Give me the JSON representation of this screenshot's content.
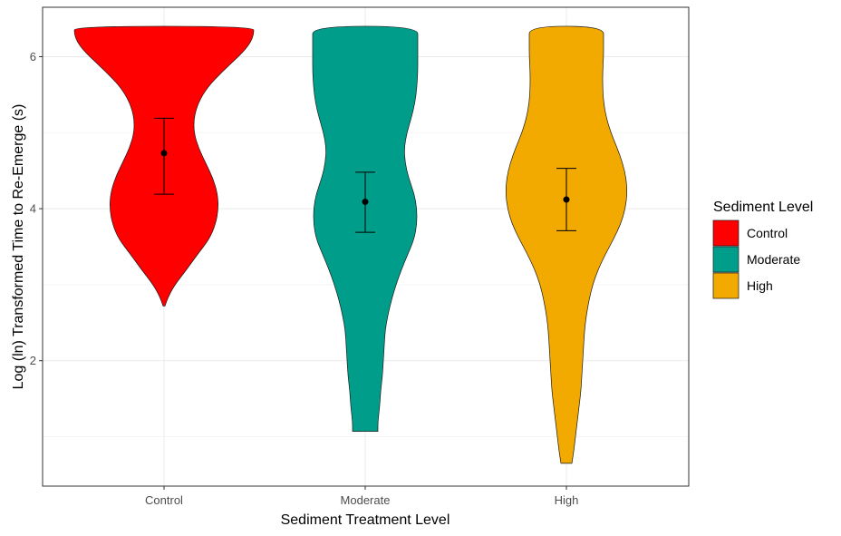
{
  "chart_data": {
    "type": "violin",
    "xlabel": "Sediment Treatment Level",
    "ylabel": "Log (ln) Transformed Time to Re-Emerge (s)",
    "categories": [
      "Control",
      "Moderate",
      "High"
    ],
    "ylim": [
      0.35,
      6.65
    ],
    "yticks": [
      2,
      4,
      6
    ],
    "grid": true,
    "legend": {
      "title": "Sediment Level",
      "position": "right",
      "entries": [
        "Control",
        "Moderate",
        "High"
      ]
    },
    "colors": [
      "#FF0000",
      "#009E8A",
      "#F2A900"
    ],
    "series": [
      {
        "name": "Control",
        "mean": 4.73,
        "ci_low": 4.19,
        "ci_high": 5.19,
        "min": 2.72,
        "max": 6.4,
        "density": [
          [
            2.72,
            0.01
          ],
          [
            2.85,
            0.05
          ],
          [
            3.0,
            0.12
          ],
          [
            3.2,
            0.25
          ],
          [
            3.4,
            0.37
          ],
          [
            3.6,
            0.5
          ],
          [
            3.8,
            0.57
          ],
          [
            4.0,
            0.6
          ],
          [
            4.2,
            0.59
          ],
          [
            4.4,
            0.54
          ],
          [
            4.6,
            0.46
          ],
          [
            4.8,
            0.38
          ],
          [
            5.0,
            0.33
          ],
          [
            5.2,
            0.33
          ],
          [
            5.4,
            0.38
          ],
          [
            5.6,
            0.48
          ],
          [
            5.8,
            0.64
          ],
          [
            6.0,
            0.82
          ],
          [
            6.1,
            0.9
          ],
          [
            6.2,
            0.96
          ],
          [
            6.3,
            0.99
          ],
          [
            6.4,
            0.99
          ]
        ]
      },
      {
        "name": "Moderate",
        "mean": 4.09,
        "ci_low": 3.69,
        "ci_high": 4.48,
        "min": 1.07,
        "max": 6.4,
        "density": [
          [
            1.07,
            0.14
          ],
          [
            1.2,
            0.14
          ],
          [
            1.4,
            0.16
          ],
          [
            1.6,
            0.17
          ],
          [
            1.8,
            0.19
          ],
          [
            2.0,
            0.2
          ],
          [
            2.2,
            0.21
          ],
          [
            2.4,
            0.22
          ],
          [
            2.6,
            0.25
          ],
          [
            2.8,
            0.29
          ],
          [
            3.0,
            0.34
          ],
          [
            3.2,
            0.4
          ],
          [
            3.4,
            0.47
          ],
          [
            3.6,
            0.54
          ],
          [
            3.8,
            0.57
          ],
          [
            4.0,
            0.57
          ],
          [
            4.2,
            0.54
          ],
          [
            4.4,
            0.48
          ],
          [
            4.6,
            0.44
          ],
          [
            4.8,
            0.43
          ],
          [
            5.0,
            0.46
          ],
          [
            5.2,
            0.51
          ],
          [
            5.4,
            0.55
          ],
          [
            5.6,
            0.57
          ],
          [
            5.8,
            0.58
          ],
          [
            6.0,
            0.58
          ],
          [
            6.2,
            0.58
          ],
          [
            6.4,
            0.58
          ]
        ]
      },
      {
        "name": "High",
        "mean": 4.12,
        "ci_low": 3.71,
        "ci_high": 4.53,
        "min": 0.65,
        "max": 6.4,
        "density": [
          [
            0.65,
            0.06
          ],
          [
            0.8,
            0.08
          ],
          [
            1.0,
            0.1
          ],
          [
            1.2,
            0.12
          ],
          [
            1.4,
            0.14
          ],
          [
            1.6,
            0.16
          ],
          [
            1.8,
            0.17
          ],
          [
            2.0,
            0.18
          ],
          [
            2.2,
            0.19
          ],
          [
            2.4,
            0.2
          ],
          [
            2.6,
            0.22
          ],
          [
            2.8,
            0.25
          ],
          [
            3.0,
            0.29
          ],
          [
            3.2,
            0.35
          ],
          [
            3.4,
            0.43
          ],
          [
            3.6,
            0.52
          ],
          [
            3.8,
            0.6
          ],
          [
            4.0,
            0.65
          ],
          [
            4.2,
            0.67
          ],
          [
            4.4,
            0.66
          ],
          [
            4.6,
            0.62
          ],
          [
            4.8,
            0.56
          ],
          [
            5.0,
            0.49
          ],
          [
            5.2,
            0.44
          ],
          [
            5.4,
            0.41
          ],
          [
            5.6,
            0.4
          ],
          [
            5.8,
            0.4
          ],
          [
            6.0,
            0.41
          ],
          [
            6.2,
            0.41
          ],
          [
            6.4,
            0.41
          ]
        ]
      }
    ]
  }
}
